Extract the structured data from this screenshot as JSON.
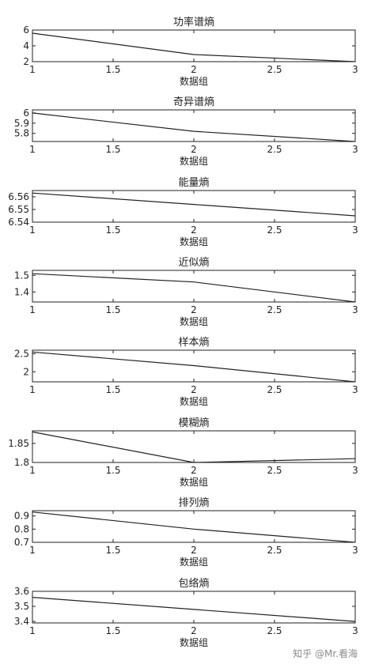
{
  "chart_data": [
    {
      "type": "line",
      "title": "功率谱熵",
      "xlabel": "数据组",
      "x": [
        1,
        2,
        3
      ],
      "values": [
        5.6,
        2.9,
        2.0
      ],
      "xlim": [
        1,
        3
      ],
      "ylim": [
        2,
        6
      ],
      "xticks": [
        1,
        1.5,
        2,
        2.5,
        3
      ],
      "xtick_labels": [
        "1",
        "1.5",
        "2",
        "2.5",
        "3"
      ],
      "yticks": [
        2,
        4,
        6
      ],
      "ytick_labels": [
        "2",
        "4",
        "6"
      ],
      "grid": false
    },
    {
      "type": "line",
      "title": "奇异谱熵",
      "xlabel": "数据组",
      "x": [
        1,
        2,
        3
      ],
      "values": [
        6.0,
        5.82,
        5.72
      ],
      "xlim": [
        1,
        3
      ],
      "ylim": [
        5.72,
        6.03
      ],
      "xticks": [
        1,
        1.5,
        2,
        2.5,
        3
      ],
      "xtick_labels": [
        "1",
        "1.5",
        "2",
        "2.5",
        "3"
      ],
      "yticks": [
        5.8,
        5.9,
        6
      ],
      "ytick_labels": [
        "5.8",
        "5.9",
        "6"
      ],
      "grid": false
    },
    {
      "type": "line",
      "title": "能量熵",
      "xlabel": "数据组",
      "x": [
        1,
        2,
        3
      ],
      "values": [
        6.563,
        6.554,
        6.545
      ],
      "xlim": [
        1,
        3
      ],
      "ylim": [
        6.54,
        6.565
      ],
      "xticks": [
        1,
        1.5,
        2,
        2.5,
        3
      ],
      "xtick_labels": [
        "1",
        "1.5",
        "2",
        "2.5",
        "3"
      ],
      "yticks": [
        6.54,
        6.55,
        6.56
      ],
      "ytick_labels": [
        "6.54",
        "6.55",
        "6.56"
      ],
      "grid": false
    },
    {
      "type": "line",
      "title": "近似熵",
      "xlabel": "数据组",
      "x": [
        1,
        2,
        3
      ],
      "values": [
        1.51,
        1.46,
        1.34
      ],
      "xlim": [
        1,
        3
      ],
      "ylim": [
        1.34,
        1.53
      ],
      "xticks": [
        1,
        1.5,
        2,
        2.5,
        3
      ],
      "xtick_labels": [
        "1",
        "1.5",
        "2",
        "2.5",
        "3"
      ],
      "yticks": [
        1.4,
        1.5
      ],
      "ytick_labels": [
        "1.4",
        "1.5"
      ],
      "grid": false
    },
    {
      "type": "line",
      "title": "样本熵",
      "xlabel": "数据组",
      "x": [
        1,
        2,
        3
      ],
      "values": [
        2.55,
        2.17,
        1.72
      ],
      "xlim": [
        1,
        3
      ],
      "ylim": [
        1.72,
        2.6
      ],
      "xticks": [
        1,
        1.5,
        2,
        2.5,
        3
      ],
      "xtick_labels": [
        "1",
        "1.5",
        "2",
        "2.5",
        "3"
      ],
      "yticks": [
        2,
        2.5
      ],
      "ytick_labels": [
        "2",
        "2.5"
      ],
      "grid": false
    },
    {
      "type": "line",
      "title": "模糊熵",
      "xlabel": "数据组",
      "x": [
        1,
        2,
        3
      ],
      "values": [
        1.88,
        1.8,
        1.81
      ],
      "xlim": [
        1,
        3
      ],
      "ylim": [
        1.8,
        1.883
      ],
      "xticks": [
        1,
        1.5,
        2,
        2.5,
        3
      ],
      "xtick_labels": [
        "1",
        "1.5",
        "2",
        "2.5",
        "3"
      ],
      "yticks": [
        1.8,
        1.85
      ],
      "ytick_labels": [
        "1.8",
        "1.85"
      ],
      "grid": false
    },
    {
      "type": "line",
      "title": "排列熵",
      "xlabel": "数据组",
      "x": [
        1,
        2,
        3
      ],
      "values": [
        0.93,
        0.8,
        0.7
      ],
      "xlim": [
        1,
        3
      ],
      "ylim": [
        0.7,
        0.94
      ],
      "xticks": [
        1,
        1.5,
        2,
        2.5,
        3
      ],
      "xtick_labels": [
        "1",
        "1.5",
        "2",
        "2.5",
        "3"
      ],
      "yticks": [
        0.7,
        0.8,
        0.9
      ],
      "ytick_labels": [
        "0.7",
        "0.8",
        "0.9"
      ],
      "grid": false
    },
    {
      "type": "line",
      "title": "包络熵",
      "xlabel": "数据组",
      "x": [
        1,
        2,
        3
      ],
      "values": [
        3.56,
        3.48,
        3.4
      ],
      "xlim": [
        1,
        3
      ],
      "ylim": [
        3.39,
        3.6
      ],
      "xticks": [
        1,
        1.5,
        2,
        2.5,
        3
      ],
      "xtick_labels": [
        "1",
        "1.5",
        "2",
        "2.5",
        "3"
      ],
      "yticks": [
        3.4,
        3.5,
        3.6
      ],
      "ytick_labels": [
        "3.4",
        "3.5",
        "3.6"
      ],
      "grid": false
    }
  ],
  "watermark": "知乎 @Mr.看海",
  "colors": {
    "line": "#222222",
    "axes": "#222222",
    "background": "#ffffff"
  }
}
